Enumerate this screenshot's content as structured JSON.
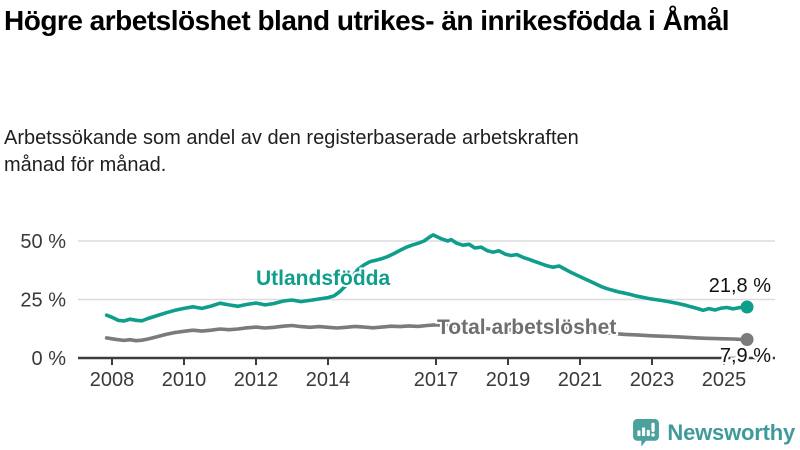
{
  "header": {
    "title": "Högre arbetslöshet bland utrikes- än inrikesfödda i Åmål",
    "subtitle": "Arbetssökande som andel av den registerbaserade arbetskraften månad för månad."
  },
  "footer": {
    "brand": "Newsworthy",
    "logo_icon": "bar-chart-speech-bubble-icon"
  },
  "colors": {
    "foreign_born_line": "#0f9e8c",
    "total_line": "#7b7b7b",
    "total_label": "#6f6f6f",
    "grid": "#dcdcdc",
    "axis": "#3c3c3c",
    "tick_text": "#3a3a3a",
    "value_text": "#111111",
    "brand": "#3f9b9b",
    "logo_bubble": "#4aa19e"
  },
  "chart_data": {
    "type": "line",
    "title": "Högre arbetslöshet bland utrikes- än inrikesfödda i Åmål",
    "xlabel": "",
    "ylabel": "",
    "x_unit": "decimal_year",
    "y_unit": "percent",
    "xlim": [
      2007.6,
      2026.2
    ],
    "ylim": [
      0,
      55
    ],
    "grid": "horizontal",
    "legend_position": "inline-labels",
    "decimal_style": "comma",
    "y_ticks": [
      {
        "value": 0,
        "label": "0 %"
      },
      {
        "value": 25,
        "label": "25 %"
      },
      {
        "value": 50,
        "label": "50 %"
      }
    ],
    "x_ticks": [
      {
        "value": 2008,
        "label": "2008"
      },
      {
        "value": 2010,
        "label": "2010"
      },
      {
        "value": 2012,
        "label": "2012"
      },
      {
        "value": 2014,
        "label": "2014"
      },
      {
        "value": 2017,
        "label": "2017"
      },
      {
        "value": 2019,
        "label": "2019"
      },
      {
        "value": 2021,
        "label": "2021"
      },
      {
        "value": 2023,
        "label": "2023"
      },
      {
        "value": 2025,
        "label": "2025"
      }
    ],
    "series": [
      {
        "name": "Utlandsfödda",
        "color": "#0f9e8c",
        "label_color": "#0f9e8c",
        "end_value": 21.8,
        "end_label": "21,8 %",
        "points": [
          [
            2007.85,
            18.3
          ],
          [
            2008.0,
            17.4
          ],
          [
            2008.17,
            16.1
          ],
          [
            2008.33,
            15.8
          ],
          [
            2008.5,
            16.6
          ],
          [
            2008.67,
            16.1
          ],
          [
            2008.83,
            15.9
          ],
          [
            2009.0,
            16.9
          ],
          [
            2009.25,
            18.1
          ],
          [
            2009.5,
            19.3
          ],
          [
            2009.75,
            20.4
          ],
          [
            2010.0,
            21.2
          ],
          [
            2010.25,
            21.9
          ],
          [
            2010.5,
            21.2
          ],
          [
            2010.75,
            22.2
          ],
          [
            2011.0,
            23.4
          ],
          [
            2011.25,
            22.7
          ],
          [
            2011.5,
            22.1
          ],
          [
            2011.75,
            22.9
          ],
          [
            2012.0,
            23.5
          ],
          [
            2012.25,
            22.7
          ],
          [
            2012.5,
            23.3
          ],
          [
            2012.75,
            24.3
          ],
          [
            2013.0,
            24.8
          ],
          [
            2013.25,
            24.1
          ],
          [
            2013.5,
            24.6
          ],
          [
            2013.75,
            25.2
          ],
          [
            2014.0,
            25.8
          ],
          [
            2014.17,
            26.6
          ],
          [
            2014.33,
            28.4
          ],
          [
            2014.5,
            31.0
          ],
          [
            2014.67,
            34.5
          ],
          [
            2014.83,
            37.8
          ],
          [
            2015.0,
            39.8
          ],
          [
            2015.17,
            41.2
          ],
          [
            2015.33,
            41.8
          ],
          [
            2015.5,
            42.5
          ],
          [
            2015.67,
            43.4
          ],
          [
            2015.83,
            44.6
          ],
          [
            2016.0,
            46.0
          ],
          [
            2016.17,
            47.3
          ],
          [
            2016.33,
            48.2
          ],
          [
            2016.5,
            49.0
          ],
          [
            2016.67,
            50.0
          ],
          [
            2016.83,
            51.8
          ],
          [
            2016.92,
            52.6
          ],
          [
            2017.0,
            52.0
          ],
          [
            2017.17,
            50.8
          ],
          [
            2017.33,
            50.0
          ],
          [
            2017.42,
            50.6
          ],
          [
            2017.58,
            49.0
          ],
          [
            2017.75,
            48.2
          ],
          [
            2017.92,
            48.6
          ],
          [
            2018.08,
            47.0
          ],
          [
            2018.25,
            47.4
          ],
          [
            2018.42,
            45.9
          ],
          [
            2018.58,
            45.2
          ],
          [
            2018.75,
            45.8
          ],
          [
            2018.92,
            44.4
          ],
          [
            2019.08,
            43.8
          ],
          [
            2019.25,
            44.2
          ],
          [
            2019.42,
            43.0
          ],
          [
            2019.58,
            42.2
          ],
          [
            2019.75,
            41.2
          ],
          [
            2019.92,
            40.3
          ],
          [
            2020.08,
            39.4
          ],
          [
            2020.25,
            38.8
          ],
          [
            2020.42,
            39.3
          ],
          [
            2020.58,
            38.0
          ],
          [
            2020.75,
            36.6
          ],
          [
            2020.92,
            35.4
          ],
          [
            2021.08,
            34.2
          ],
          [
            2021.25,
            33.0
          ],
          [
            2021.42,
            31.8
          ],
          [
            2021.58,
            30.6
          ],
          [
            2021.75,
            29.6
          ],
          [
            2021.92,
            28.9
          ],
          [
            2022.08,
            28.2
          ],
          [
            2022.25,
            27.7
          ],
          [
            2022.42,
            27.1
          ],
          [
            2022.58,
            26.4
          ],
          [
            2022.75,
            25.9
          ],
          [
            2022.92,
            25.4
          ],
          [
            2023.08,
            25.0
          ],
          [
            2023.25,
            24.6
          ],
          [
            2023.42,
            24.2
          ],
          [
            2023.58,
            23.7
          ],
          [
            2023.75,
            23.2
          ],
          [
            2023.92,
            22.6
          ],
          [
            2024.08,
            21.9
          ],
          [
            2024.25,
            21.2
          ],
          [
            2024.42,
            20.4
          ],
          [
            2024.58,
            21.1
          ],
          [
            2024.75,
            20.5
          ],
          [
            2024.92,
            21.3
          ],
          [
            2025.08,
            21.6
          ],
          [
            2025.25,
            21.0
          ],
          [
            2025.42,
            21.5
          ],
          [
            2025.64,
            21.8
          ]
        ]
      },
      {
        "name": "Total arbetslöshet",
        "color": "#7b7b7b",
        "label_color": "#6f6f6f",
        "end_value": 7.9,
        "end_label": "7,9 %",
        "points": [
          [
            2007.85,
            8.6
          ],
          [
            2008.0,
            8.2
          ],
          [
            2008.17,
            7.8
          ],
          [
            2008.33,
            7.5
          ],
          [
            2008.5,
            7.8
          ],
          [
            2008.67,
            7.4
          ],
          [
            2008.83,
            7.6
          ],
          [
            2009.0,
            8.1
          ],
          [
            2009.25,
            9.1
          ],
          [
            2009.5,
            10.1
          ],
          [
            2009.75,
            10.9
          ],
          [
            2010.0,
            11.4
          ],
          [
            2010.25,
            11.9
          ],
          [
            2010.5,
            11.5
          ],
          [
            2010.75,
            11.9
          ],
          [
            2011.0,
            12.4
          ],
          [
            2011.25,
            12.1
          ],
          [
            2011.5,
            12.4
          ],
          [
            2011.75,
            12.9
          ],
          [
            2012.0,
            13.2
          ],
          [
            2012.25,
            12.8
          ],
          [
            2012.5,
            13.1
          ],
          [
            2012.75,
            13.6
          ],
          [
            2013.0,
            13.9
          ],
          [
            2013.25,
            13.4
          ],
          [
            2013.5,
            13.1
          ],
          [
            2013.75,
            13.4
          ],
          [
            2014.0,
            13.1
          ],
          [
            2014.25,
            12.8
          ],
          [
            2014.5,
            13.1
          ],
          [
            2014.75,
            13.5
          ],
          [
            2015.0,
            13.2
          ],
          [
            2015.25,
            12.9
          ],
          [
            2015.5,
            13.2
          ],
          [
            2015.75,
            13.6
          ],
          [
            2016.0,
            13.4
          ],
          [
            2016.25,
            13.7
          ],
          [
            2016.5,
            13.5
          ],
          [
            2016.75,
            13.9
          ],
          [
            2017.0,
            14.2
          ],
          [
            2017.25,
            13.9
          ],
          [
            2017.5,
            13.6
          ],
          [
            2017.75,
            13.3
          ],
          [
            2018.0,
            13.0
          ],
          [
            2018.25,
            12.7
          ],
          [
            2018.5,
            12.4
          ],
          [
            2018.75,
            12.2
          ],
          [
            2019.0,
            12.0
          ],
          [
            2019.25,
            12.2
          ],
          [
            2019.5,
            11.9
          ],
          [
            2019.75,
            11.7
          ],
          [
            2020.0,
            11.8
          ],
          [
            2020.25,
            12.4
          ],
          [
            2020.5,
            12.7
          ],
          [
            2020.75,
            12.4
          ],
          [
            2021.0,
            12.0
          ],
          [
            2021.25,
            11.6
          ],
          [
            2021.5,
            11.2
          ],
          [
            2021.75,
            10.8
          ],
          [
            2022.0,
            10.4
          ],
          [
            2022.25,
            10.1
          ],
          [
            2022.5,
            9.9
          ],
          [
            2022.75,
            9.7
          ],
          [
            2023.0,
            9.5
          ],
          [
            2023.25,
            9.3
          ],
          [
            2023.5,
            9.2
          ],
          [
            2023.75,
            9.0
          ],
          [
            2024.0,
            8.8
          ],
          [
            2024.25,
            8.6
          ],
          [
            2024.5,
            8.4
          ],
          [
            2024.75,
            8.3
          ],
          [
            2025.0,
            8.2
          ],
          [
            2025.25,
            8.1
          ],
          [
            2025.42,
            8.0
          ],
          [
            2025.64,
            7.9
          ]
        ]
      }
    ]
  }
}
